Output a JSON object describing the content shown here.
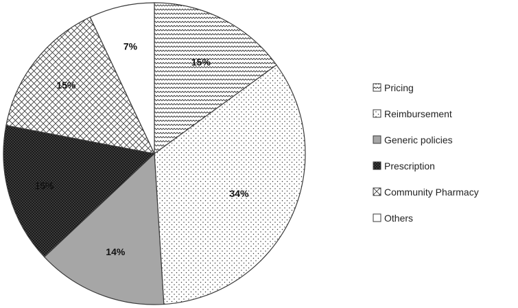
{
  "chart_data": {
    "type": "pie",
    "title": "",
    "start_angle_deg": 0,
    "direction": "clockwise",
    "slices": [
      {
        "label": "Pricing",
        "value": 15,
        "display": "15%",
        "pattern": "zigzag"
      },
      {
        "label": "Reimbursement",
        "value": 34,
        "display": "34%",
        "pattern": "dots"
      },
      {
        "label": "Generic policies",
        "value": 14,
        "display": "14%",
        "pattern": "solid-gray"
      },
      {
        "label": "Prescription",
        "value": 15,
        "display": "15%",
        "pattern": "dense-dark"
      },
      {
        "label": "Community Pharmacy",
        "value": 15,
        "display": "15%",
        "pattern": "crosshatch"
      },
      {
        "label": "Others",
        "value": 7,
        "display": "7%",
        "pattern": "white"
      }
    ],
    "legend": {
      "position": "right",
      "entries": [
        "Pricing",
        "Reimbursement",
        "Generic policies",
        "Prescription",
        "Community Pharmacy",
        "Others"
      ]
    },
    "colors": {
      "outline": "#3a3a3a",
      "gray_fill": "#a6a6a6",
      "dark_fill": "#1a1a1a"
    }
  }
}
